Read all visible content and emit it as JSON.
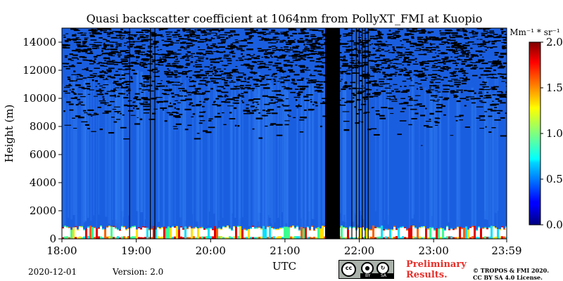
{
  "chart_data": {
    "type": "heatmap",
    "title": "Quasi backscatter coefficient at 1064nm from PollyXT_FMI at Kuopio",
    "xlabel": "UTC",
    "ylabel": "Height (m)",
    "x_ticks": [
      "18:00",
      "19:00",
      "20:00",
      "21:00",
      "22:00",
      "23:00",
      "23:59"
    ],
    "x_tick_hours": [
      18,
      19,
      20,
      21,
      22,
      23,
      23.983
    ],
    "xlim_hours": [
      18,
      23.983
    ],
    "y_ticks": [
      0,
      2000,
      4000,
      6000,
      8000,
      10000,
      12000,
      14000
    ],
    "ylim": [
      0,
      15000
    ],
    "colorbar": {
      "unit": "Mm⁻¹ * sr⁻¹",
      "ticks": [
        "0.0",
        "0.5",
        "1.0",
        "1.5",
        "2.0"
      ],
      "tick_values": [
        0,
        0.5,
        1.0,
        1.5,
        2.0
      ],
      "range": [
        0,
        2.0
      ],
      "colormap": "jet"
    },
    "no_data_hours": [
      [
        21.54,
        21.74
      ]
    ],
    "data_gap_hours": [
      18.91,
      19.19,
      19.25,
      21.9,
      21.96,
      22.0,
      22.04,
      22.08,
      22.12
    ],
    "background_level": 0.35,
    "boundary_layer_top_m": 800,
    "colors": {
      "background": "#1a5ee0",
      "noise": "#000000",
      "cloud": "#ffffff"
    }
  },
  "footer": {
    "date": "2020-12-01",
    "version": "Version: 2.0",
    "preliminary": "Preliminary\nResults.",
    "copyright_line1": "© TROPOS & FMI 2020.",
    "copyright_line2": "CC BY SA 4.0 License.",
    "license_badge_label": "cc",
    "license_by": "BY",
    "license_sa": "SA"
  }
}
